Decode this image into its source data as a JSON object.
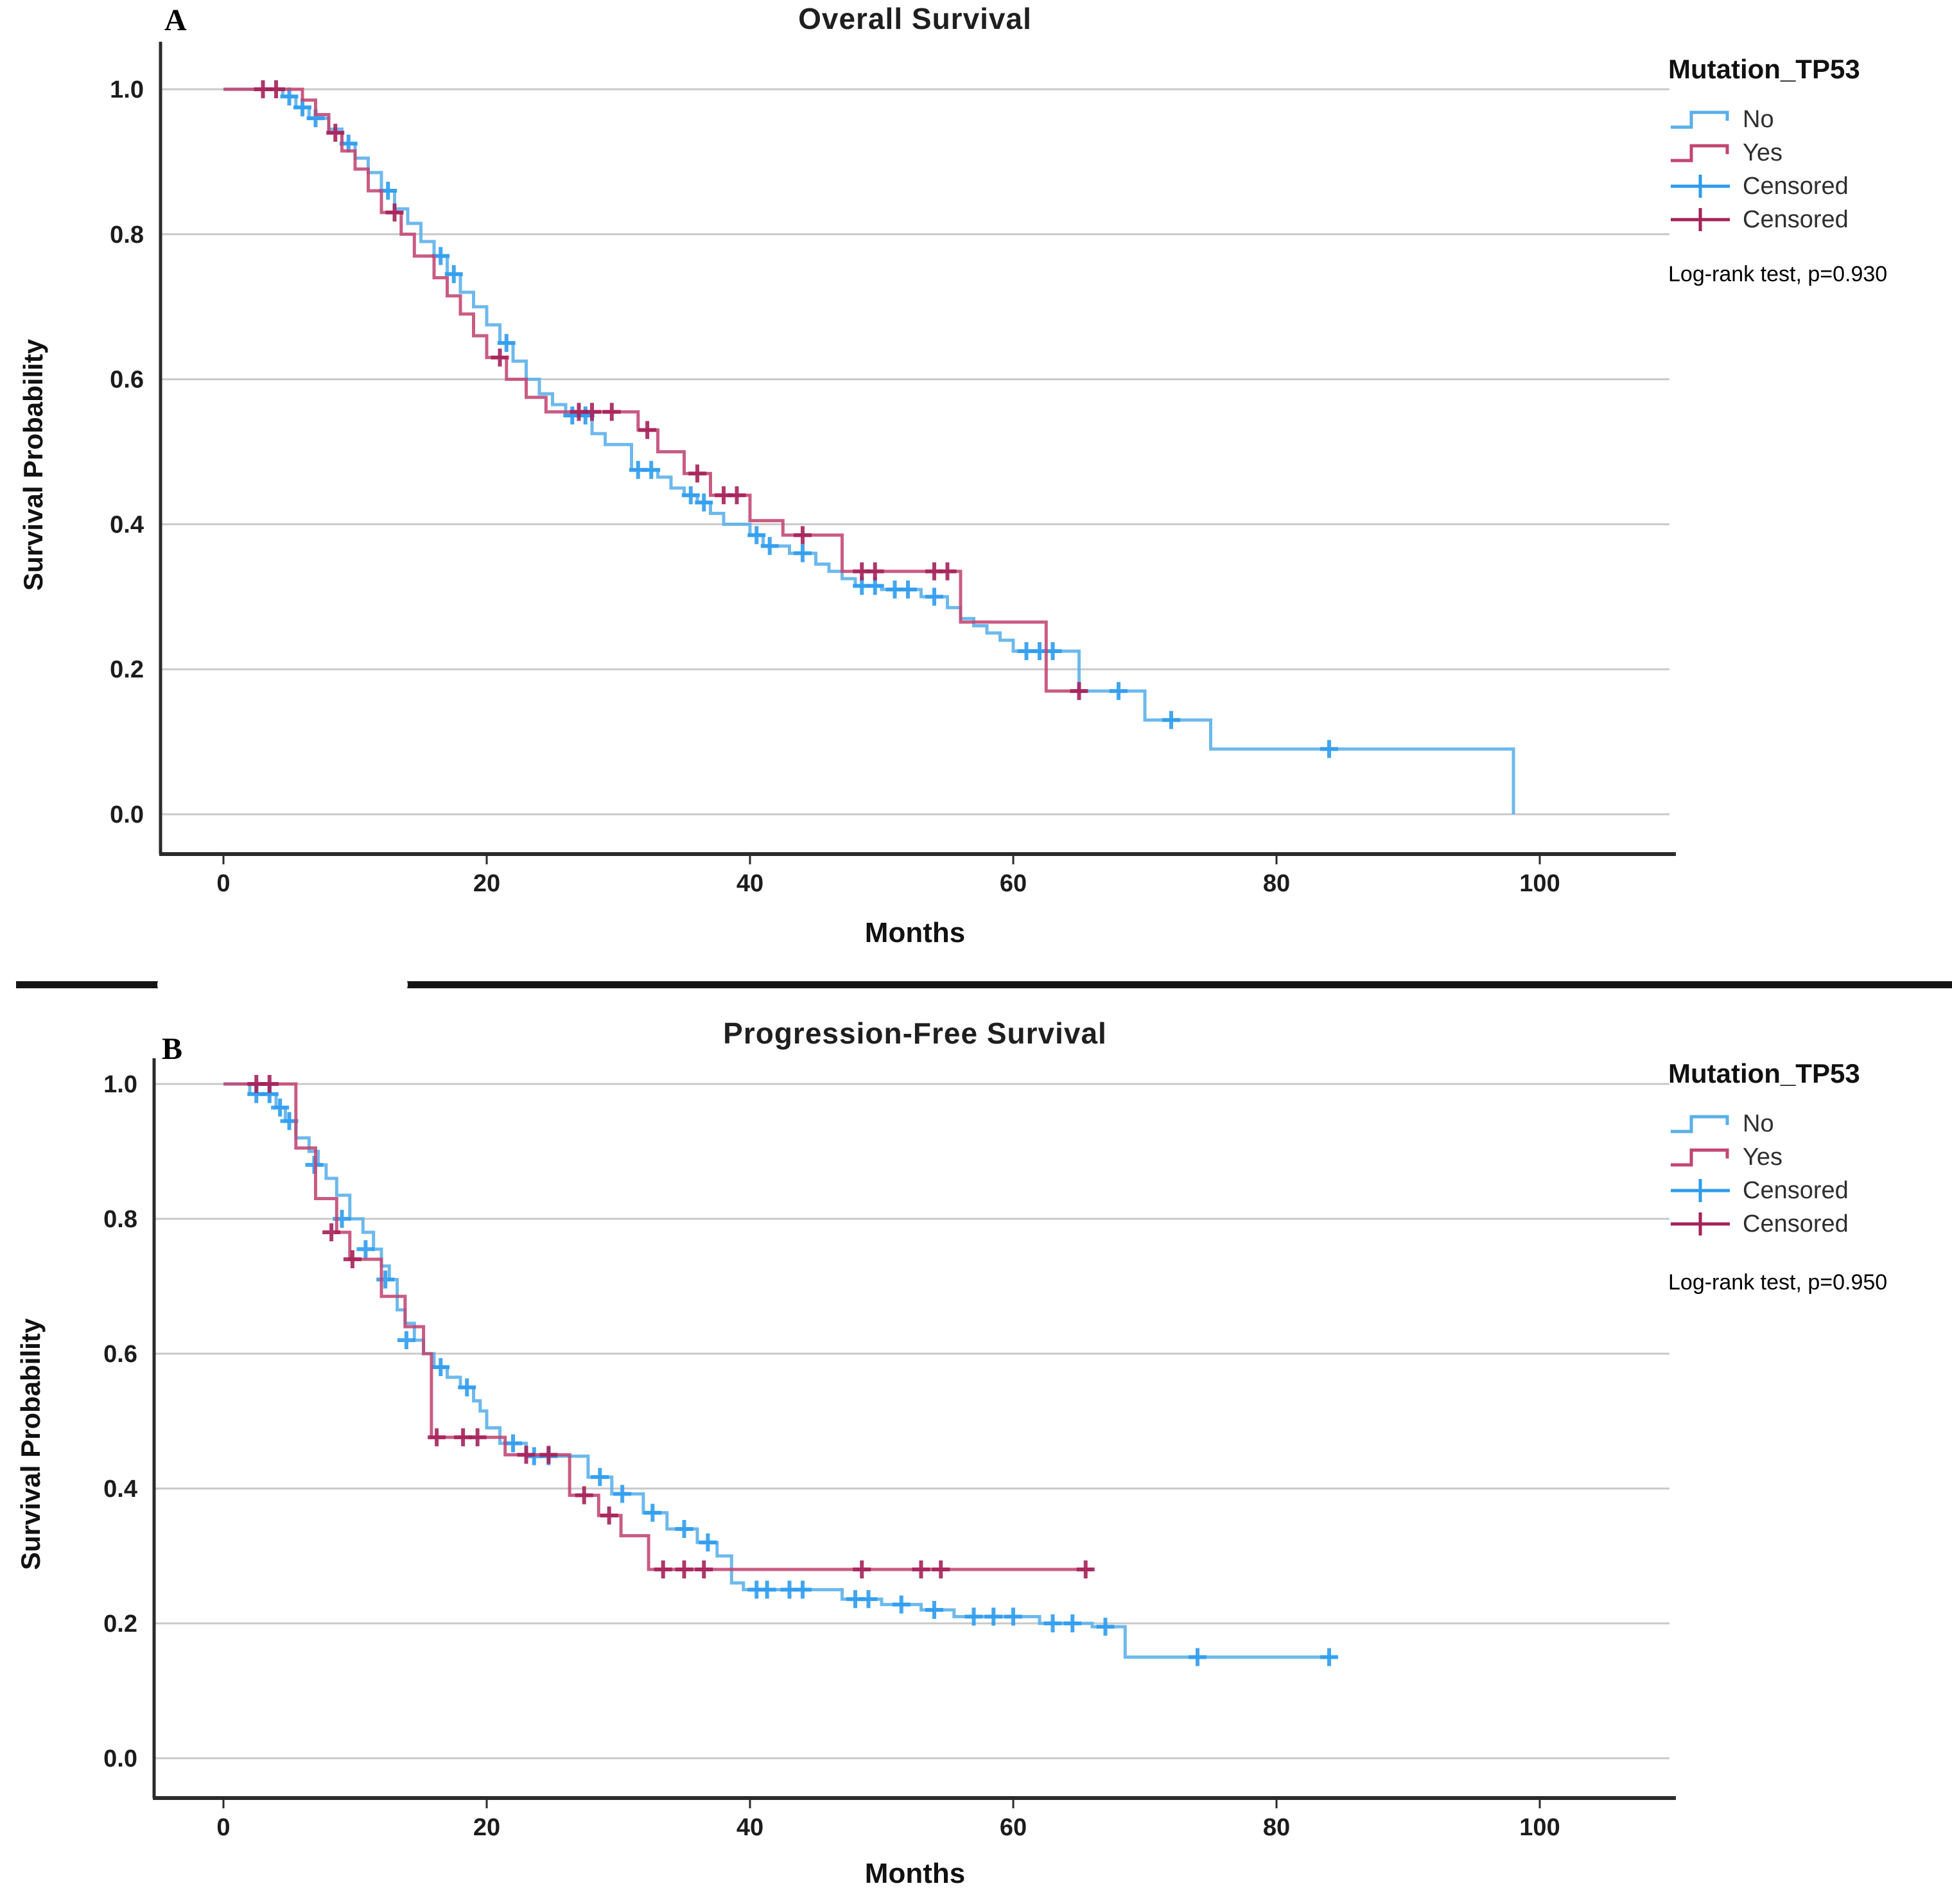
{
  "figure": {
    "panel_a_letter": "A",
    "panel_b_letter": "B"
  },
  "chart_data": [
    {
      "type": "line",
      "subtype": "kaplan-meier-step",
      "panel_label": "A",
      "title": "Overall Survival",
      "xlabel": "Months",
      "ylabel": "Survival Probability",
      "legend_title": "Mutation_TP53",
      "annotation": "Log-rank test, p=0.930",
      "xlim": [
        -5,
        110
      ],
      "ylim": [
        0.0,
        1.0
      ],
      "x_ticks": [
        0,
        20,
        40,
        60,
        80,
        100
      ],
      "y_ticks": [
        1.0,
        0.8,
        0.6,
        0.4,
        0.2,
        0.0
      ],
      "grid": "horizontal",
      "legend_position": "right",
      "legend_items": [
        {
          "label": "No",
          "glyph": "step",
          "color": "#59AFEA"
        },
        {
          "label": "Yes",
          "glyph": "step",
          "color": "#C24672"
        },
        {
          "label": "Censored",
          "glyph": "plus",
          "color": "#2D9CEF"
        },
        {
          "label": "Censored",
          "glyph": "plus",
          "color": "#A5215A"
        }
      ],
      "series": [
        {
          "name": "No",
          "color": "#59AFEA",
          "censor_color": "#2D9CEF",
          "steps": [
            [
              0,
              1.0
            ],
            [
              4.5,
              0.99
            ],
            [
              5.5,
              0.975
            ],
            [
              6.5,
              0.96
            ],
            [
              8,
              0.945
            ],
            [
              9,
              0.925
            ],
            [
              10,
              0.905
            ],
            [
              11,
              0.885
            ],
            [
              12,
              0.86
            ],
            [
              13,
              0.835
            ],
            [
              14,
              0.815
            ],
            [
              15,
              0.79
            ],
            [
              16,
              0.77
            ],
            [
              17,
              0.745
            ],
            [
              18,
              0.72
            ],
            [
              19,
              0.7
            ],
            [
              20,
              0.675
            ],
            [
              21,
              0.65
            ],
            [
              22,
              0.625
            ],
            [
              23,
              0.6
            ],
            [
              24,
              0.58
            ],
            [
              25,
              0.565
            ],
            [
              26,
              0.55
            ],
            [
              28,
              0.525
            ],
            [
              29,
              0.51
            ],
            [
              31,
              0.475
            ],
            [
              33,
              0.465
            ],
            [
              34,
              0.45
            ],
            [
              35,
              0.44
            ],
            [
              36,
              0.43
            ],
            [
              37,
              0.415
            ],
            [
              38,
              0.4
            ],
            [
              40,
              0.385
            ],
            [
              41,
              0.37
            ],
            [
              43,
              0.36
            ],
            [
              45,
              0.345
            ],
            [
              46,
              0.335
            ],
            [
              47,
              0.325
            ],
            [
              48,
              0.315
            ],
            [
              50,
              0.31
            ],
            [
              53,
              0.3
            ],
            [
              55,
              0.285
            ],
            [
              56,
              0.27
            ],
            [
              57,
              0.26
            ],
            [
              58,
              0.25
            ],
            [
              59,
              0.24
            ],
            [
              60,
              0.225
            ],
            [
              65,
              0.17
            ],
            [
              70,
              0.13
            ],
            [
              75,
              0.09
            ],
            [
              98,
              0.0
            ]
          ],
          "censored": [
            [
              5,
              0.99
            ],
            [
              6,
              0.975
            ],
            [
              7,
              0.96
            ],
            [
              9.5,
              0.925
            ],
            [
              12.5,
              0.86
            ],
            [
              16.5,
              0.77
            ],
            [
              17.5,
              0.745
            ],
            [
              21.5,
              0.65
            ],
            [
              26.5,
              0.55
            ],
            [
              27.5,
              0.55
            ],
            [
              31.5,
              0.475
            ],
            [
              32.5,
              0.475
            ],
            [
              35.5,
              0.44
            ],
            [
              36.5,
              0.43
            ],
            [
              40.5,
              0.385
            ],
            [
              41.5,
              0.37
            ],
            [
              44,
              0.36
            ],
            [
              48.5,
              0.315
            ],
            [
              49.5,
              0.315
            ],
            [
              51,
              0.31
            ],
            [
              52,
              0.31
            ],
            [
              54,
              0.3
            ],
            [
              61,
              0.225
            ],
            [
              62,
              0.225
            ],
            [
              63,
              0.225
            ],
            [
              68,
              0.17
            ],
            [
              72,
              0.13
            ],
            [
              84,
              0.09
            ]
          ]
        },
        {
          "name": "Yes",
          "color": "#C24672",
          "censor_color": "#A5215A",
          "steps": [
            [
              0,
              1.0
            ],
            [
              6,
              0.985
            ],
            [
              7,
              0.965
            ],
            [
              8,
              0.94
            ],
            [
              9,
              0.915
            ],
            [
              10,
              0.89
            ],
            [
              11,
              0.86
            ],
            [
              12,
              0.83
            ],
            [
              13.5,
              0.8
            ],
            [
              14.5,
              0.77
            ],
            [
              16,
              0.74
            ],
            [
              17,
              0.715
            ],
            [
              18,
              0.69
            ],
            [
              19,
              0.66
            ],
            [
              20,
              0.63
            ],
            [
              21.5,
              0.6
            ],
            [
              23,
              0.575
            ],
            [
              24.5,
              0.555
            ],
            [
              31.5,
              0.53
            ],
            [
              33,
              0.5
            ],
            [
              35,
              0.47
            ],
            [
              37,
              0.44
            ],
            [
              40,
              0.405
            ],
            [
              42.5,
              0.385
            ],
            [
              47,
              0.335
            ],
            [
              56,
              0.265
            ],
            [
              62.5,
              0.17
            ],
            [
              65.5,
              0.17
            ]
          ],
          "censored": [
            [
              3,
              1.0
            ],
            [
              4,
              1.0
            ],
            [
              8.5,
              0.94
            ],
            [
              13,
              0.83
            ],
            [
              21,
              0.63
            ],
            [
              27,
              0.555
            ],
            [
              28,
              0.555
            ],
            [
              29.5,
              0.555
            ],
            [
              32.2,
              0.53
            ],
            [
              36,
              0.47
            ],
            [
              38,
              0.44
            ],
            [
              39,
              0.44
            ],
            [
              44,
              0.385
            ],
            [
              48.5,
              0.335
            ],
            [
              49.5,
              0.335
            ],
            [
              54,
              0.335
            ],
            [
              55,
              0.335
            ],
            [
              65,
              0.17
            ]
          ]
        }
      ]
    },
    {
      "type": "line",
      "subtype": "kaplan-meier-step",
      "panel_label": "B",
      "title": "Progression-Free Survival",
      "xlabel": "Months",
      "ylabel": "Survival Probability",
      "legend_title": "Mutation_TP53",
      "annotation": "Log-rank test, p=0.950",
      "xlim": [
        -5,
        110
      ],
      "ylim": [
        0.0,
        1.0
      ],
      "x_ticks": [
        0,
        20,
        40,
        60,
        80,
        100
      ],
      "y_ticks": [
        1.0,
        0.8,
        0.6,
        0.4,
        0.2,
        0.0
      ],
      "grid": "horizontal",
      "legend_position": "right",
      "legend_items": [
        {
          "label": "No",
          "glyph": "step",
          "color": "#59AFEA"
        },
        {
          "label": "Yes",
          "glyph": "step",
          "color": "#C24672"
        },
        {
          "label": "Censored",
          "glyph": "plus",
          "color": "#2D9CEF"
        },
        {
          "label": "Censored",
          "glyph": "plus",
          "color": "#A5215A"
        }
      ],
      "series": [
        {
          "name": "No",
          "color": "#59AFEA",
          "censor_color": "#2D9CEF",
          "steps": [
            [
              0,
              1.0
            ],
            [
              2,
              0.985
            ],
            [
              4,
              0.965
            ],
            [
              4.7,
              0.945
            ],
            [
              5.5,
              0.92
            ],
            [
              6.5,
              0.9
            ],
            [
              7.2,
              0.88
            ],
            [
              7.8,
              0.86
            ],
            [
              8.6,
              0.835
            ],
            [
              9.6,
              0.8
            ],
            [
              10.6,
              0.78
            ],
            [
              11.4,
              0.755
            ],
            [
              12,
              0.73
            ],
            [
              12.6,
              0.71
            ],
            [
              13.2,
              0.665
            ],
            [
              13.8,
              0.645
            ],
            [
              14.5,
              0.62
            ],
            [
              15.2,
              0.6
            ],
            [
              16,
              0.58
            ],
            [
              17,
              0.565
            ],
            [
              18,
              0.55
            ],
            [
              19,
              0.53
            ],
            [
              19.5,
              0.515
            ],
            [
              20,
              0.49
            ],
            [
              21,
              0.467
            ],
            [
              23,
              0.448
            ],
            [
              27.7,
              0.417
            ],
            [
              29.5,
              0.392
            ],
            [
              31.9,
              0.364
            ],
            [
              33.7,
              0.34
            ],
            [
              36,
              0.32
            ],
            [
              37.5,
              0.3
            ],
            [
              38.6,
              0.26
            ],
            [
              39.5,
              0.25
            ],
            [
              47,
              0.236
            ],
            [
              50,
              0.228
            ],
            [
              53,
              0.22
            ],
            [
              55.5,
              0.21
            ],
            [
              62,
              0.2
            ],
            [
              66,
              0.195
            ],
            [
              68.5,
              0.15
            ],
            [
              84.5,
              0.15
            ]
          ],
          "censored": [
            [
              2.5,
              0.985
            ],
            [
              3.5,
              0.985
            ],
            [
              4.3,
              0.965
            ],
            [
              5,
              0.945
            ],
            [
              6.9,
              0.88
            ],
            [
              9,
              0.8
            ],
            [
              10.8,
              0.755
            ],
            [
              12.3,
              0.71
            ],
            [
              13.9,
              0.62
            ],
            [
              16.5,
              0.58
            ],
            [
              18.5,
              0.55
            ],
            [
              22,
              0.467
            ],
            [
              23.6,
              0.448
            ],
            [
              24.7,
              0.448
            ],
            [
              28.6,
              0.417
            ],
            [
              30.3,
              0.392
            ],
            [
              32.6,
              0.364
            ],
            [
              35,
              0.34
            ],
            [
              36.8,
              0.32
            ],
            [
              40.5,
              0.25
            ],
            [
              41.3,
              0.25
            ],
            [
              43,
              0.25
            ],
            [
              44,
              0.25
            ],
            [
              48,
              0.236
            ],
            [
              49,
              0.236
            ],
            [
              51.5,
              0.228
            ],
            [
              54,
              0.22
            ],
            [
              57,
              0.21
            ],
            [
              58.5,
              0.21
            ],
            [
              60,
              0.21
            ],
            [
              63,
              0.2
            ],
            [
              64.5,
              0.2
            ],
            [
              67,
              0.195
            ],
            [
              74,
              0.15
            ],
            [
              84,
              0.15
            ]
          ]
        },
        {
          "name": "Yes",
          "color": "#C24672",
          "censor_color": "#A5215A",
          "steps": [
            [
              0,
              1.0
            ],
            [
              5.5,
              0.905
            ],
            [
              7,
              0.83
            ],
            [
              8.6,
              0.78
            ],
            [
              9.6,
              0.74
            ],
            [
              12,
              0.685
            ],
            [
              13.8,
              0.64
            ],
            [
              15.2,
              0.6
            ],
            [
              15.8,
              0.476
            ],
            [
              21.4,
              0.45
            ],
            [
              26.3,
              0.39
            ],
            [
              28.5,
              0.36
            ],
            [
              30.2,
              0.33
            ],
            [
              32.3,
              0.28
            ],
            [
              66,
              0.28
            ]
          ],
          "censored": [
            [
              2.5,
              1.0
            ],
            [
              3.5,
              1.0
            ],
            [
              8.2,
              0.78
            ],
            [
              9.8,
              0.74
            ],
            [
              16.2,
              0.476
            ],
            [
              18.2,
              0.476
            ],
            [
              19.3,
              0.476
            ],
            [
              23,
              0.45
            ],
            [
              24.7,
              0.45
            ],
            [
              27.4,
              0.39
            ],
            [
              29.3,
              0.36
            ],
            [
              33.4,
              0.28
            ],
            [
              35,
              0.28
            ],
            [
              36.5,
              0.28
            ],
            [
              48.5,
              0.28
            ],
            [
              53,
              0.28
            ],
            [
              54.5,
              0.28
            ],
            [
              65.5,
              0.28
            ]
          ]
        }
      ]
    }
  ]
}
